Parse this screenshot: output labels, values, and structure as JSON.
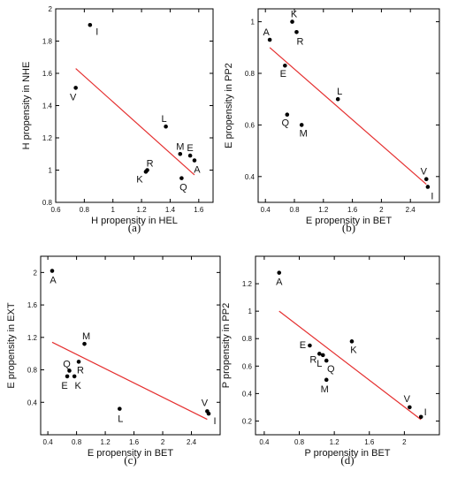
{
  "chart_data": [
    {
      "type": "scatter",
      "panel_label": "(a)",
      "xlabel": "H propensity in HEL",
      "ylabel": "H propensity in NHE",
      "xlim": [
        0.6,
        1.7
      ],
      "ylim": [
        0.8,
        2.0
      ],
      "xticks": [
        "0.6",
        "0.8",
        "1",
        "1.2",
        "1.4",
        "1.6"
      ],
      "yticks": [
        "0.8",
        "1",
        "1.2",
        "1.4",
        "1.6",
        "1.8",
        "2"
      ],
      "points": [
        {
          "label": "I",
          "x": 0.84,
          "y": 1.9
        },
        {
          "label": "V",
          "x": 0.74,
          "y": 1.51
        },
        {
          "label": "L",
          "x": 1.37,
          "y": 1.27
        },
        {
          "label": "M",
          "x": 1.47,
          "y": 1.1
        },
        {
          "label": "E",
          "x": 1.54,
          "y": 1.09
        },
        {
          "label": "A",
          "x": 1.57,
          "y": 1.06
        },
        {
          "label": "R",
          "x": 1.24,
          "y": 1.0
        },
        {
          "label": "K",
          "x": 1.23,
          "y": 0.99
        },
        {
          "label": "Q",
          "x": 1.48,
          "y": 0.95
        }
      ],
      "fit_line": {
        "x1": 0.74,
        "y1": 1.63,
        "x2": 1.57,
        "y2": 0.97
      },
      "line_color": "#e53030"
    },
    {
      "type": "scatter",
      "panel_label": "(b)",
      "xlabel": "E propensity in BET",
      "ylabel": "E propensity in PP2",
      "xlim": [
        0.3,
        2.8
      ],
      "ylim": [
        0.3,
        1.05
      ],
      "xticks": [
        "0.4",
        "0.8",
        "1.2",
        "1.6",
        "2",
        "2.4"
      ],
      "yticks": [
        "0.4",
        "0.6",
        "0.8",
        "1"
      ],
      "points": [
        {
          "label": "K",
          "x": 0.77,
          "y": 1.0
        },
        {
          "label": "R",
          "x": 0.83,
          "y": 0.96
        },
        {
          "label": "A",
          "x": 0.46,
          "y": 0.93
        },
        {
          "label": "E",
          "x": 0.67,
          "y": 0.83
        },
        {
          "label": "L",
          "x": 1.4,
          "y": 0.7
        },
        {
          "label": "Q",
          "x": 0.7,
          "y": 0.64
        },
        {
          "label": "M",
          "x": 0.9,
          "y": 0.6
        },
        {
          "label": "V",
          "x": 2.62,
          "y": 0.39
        },
        {
          "label": "I",
          "x": 2.64,
          "y": 0.36
        }
      ],
      "fit_line": {
        "x1": 0.46,
        "y1": 0.9,
        "x2": 2.62,
        "y2": 0.37
      },
      "line_color": "#e53030"
    },
    {
      "type": "scatter",
      "panel_label": "(c)",
      "xlabel": "E propensity in BET",
      "ylabel": "E propensity in EXT",
      "xlim": [
        0.3,
        2.8
      ],
      "ylim": [
        0.0,
        2.2
      ],
      "xticks": [
        "0.4",
        "0.8",
        "1.2",
        "1.6",
        "2",
        "2.4"
      ],
      "yticks": [
        "0.4",
        "0.8",
        "1.2",
        "1.6",
        "2"
      ],
      "points": [
        {
          "label": "A",
          "x": 0.46,
          "y": 2.02
        },
        {
          "label": "M",
          "x": 0.91,
          "y": 1.12
        },
        {
          "label": "R",
          "x": 0.83,
          "y": 0.9
        },
        {
          "label": "Q",
          "x": 0.7,
          "y": 0.79
        },
        {
          "label": "E",
          "x": 0.67,
          "y": 0.72
        },
        {
          "label": "K",
          "x": 0.77,
          "y": 0.72
        },
        {
          "label": "L",
          "x": 1.4,
          "y": 0.32
        },
        {
          "label": "V",
          "x": 2.62,
          "y": 0.29
        },
        {
          "label": "I",
          "x": 2.64,
          "y": 0.26
        }
      ],
      "fit_line": {
        "x1": 0.46,
        "y1": 1.14,
        "x2": 2.62,
        "y2": 0.19
      },
      "line_color": "#e53030"
    },
    {
      "type": "scatter",
      "panel_label": "(d)",
      "xlabel": "P propensity in BET",
      "ylabel": "P propensity in PP2",
      "xlim": [
        0.3,
        2.4
      ],
      "ylim": [
        0.1,
        1.4
      ],
      "xticks": [
        "0.4",
        "0.8",
        "1.2",
        "1.6",
        "2"
      ],
      "yticks": [
        "0.2",
        "0.4",
        "0.6",
        "0.8",
        "1",
        "1.2"
      ],
      "points": [
        {
          "label": "A",
          "x": 0.57,
          "y": 1.28
        },
        {
          "label": "K",
          "x": 1.4,
          "y": 0.78
        },
        {
          "label": "E",
          "x": 0.92,
          "y": 0.75
        },
        {
          "label": "R",
          "x": 1.03,
          "y": 0.69
        },
        {
          "label": "L",
          "x": 1.07,
          "y": 0.68
        },
        {
          "label": "Q",
          "x": 1.11,
          "y": 0.64
        },
        {
          "label": "M",
          "x": 1.11,
          "y": 0.5
        },
        {
          "label": "V",
          "x": 2.06,
          "y": 0.3
        },
        {
          "label": "I",
          "x": 2.19,
          "y": 0.23
        }
      ],
      "fit_line": {
        "x1": 0.57,
        "y1": 1.0,
        "x2": 2.19,
        "y2": 0.21
      },
      "line_color": "#e53030"
    }
  ]
}
